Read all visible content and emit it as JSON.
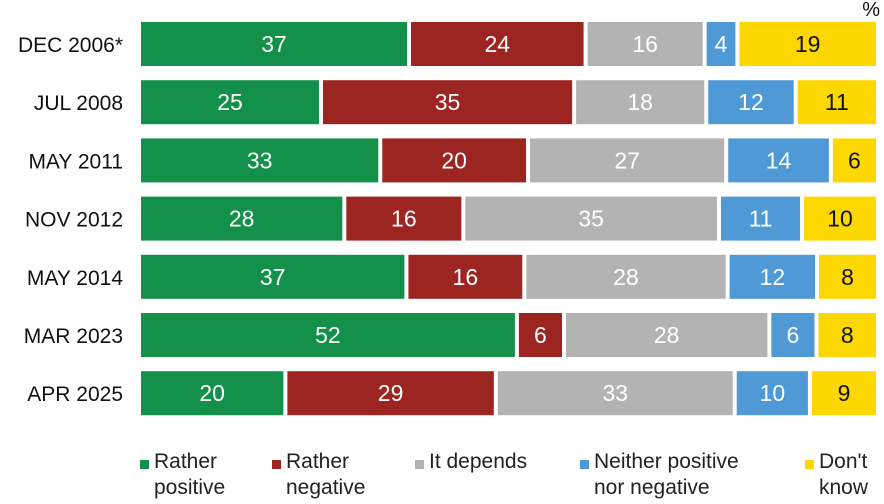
{
  "unit_label": "%",
  "colors": {
    "rather_positive": "#13904a",
    "rather_negative": "#9c2522",
    "it_depends": "#b3b3b3",
    "neither": "#4f99d6",
    "dont_know": "#fdd700"
  },
  "chart_data": {
    "type": "bar",
    "orientation": "horizontal",
    "stacked": true,
    "categories": [
      "DEC 2006*",
      "JUL 2008",
      "MAY 2011",
      "NOV 2012",
      "MAY 2014",
      "MAR 2023",
      "APR 2025"
    ],
    "series": [
      {
        "name": "Rather positive",
        "color_key": "rather_positive",
        "values": [
          37,
          25,
          33,
          28,
          37,
          52,
          20
        ]
      },
      {
        "name": "Rather negative",
        "color_key": "rather_negative",
        "values": [
          24,
          35,
          20,
          16,
          16,
          6,
          29
        ]
      },
      {
        "name": "It depends",
        "color_key": "it_depends",
        "values": [
          16,
          18,
          27,
          35,
          28,
          28,
          33
        ]
      },
      {
        "name": "Neither positive nor negative",
        "color_key": "neither",
        "values": [
          4,
          12,
          14,
          11,
          12,
          6,
          10
        ]
      },
      {
        "name": "Don't know",
        "color_key": "dont_know",
        "values": [
          19,
          11,
          6,
          10,
          8,
          8,
          9
        ]
      }
    ],
    "legend_position": "bottom",
    "grid": false
  },
  "legend": [
    {
      "label": "Rather\npositive",
      "color_key": "rather_positive"
    },
    {
      "label": "Rather\nnegative",
      "color_key": "rather_negative"
    },
    {
      "label": "It depends",
      "color_key": "it_depends"
    },
    {
      "label": "Neither positive\nnor negative",
      "color_key": "neither"
    },
    {
      "label": "Don't\nknow",
      "color_key": "dont_know"
    }
  ]
}
